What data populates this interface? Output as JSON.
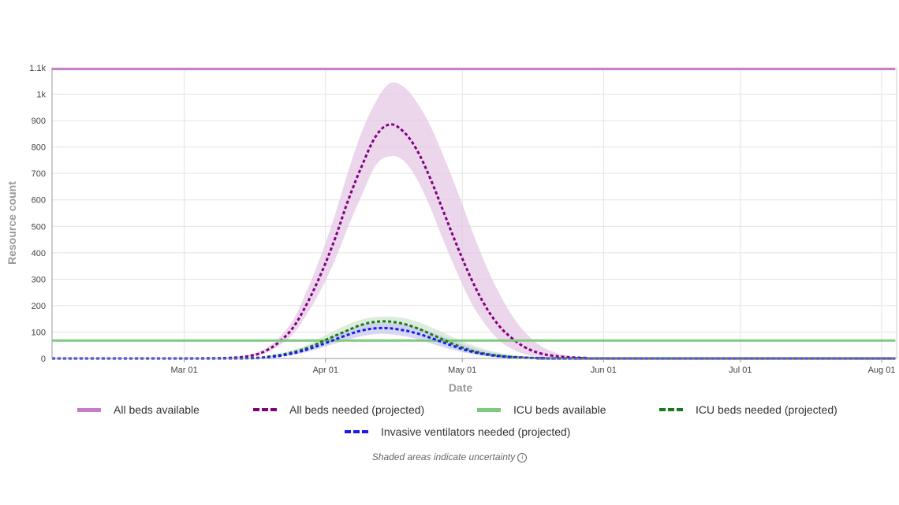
{
  "chart_data": {
    "type": "line",
    "xlabel": "Date",
    "ylabel": "Resource count",
    "ylim": [
      0,
      1100
    ],
    "y_ticks": [
      0,
      100,
      200,
      300,
      400,
      500,
      600,
      700,
      800,
      900,
      1000,
      1100
    ],
    "y_tick_labels": [
      "0",
      "100",
      "200",
      "300",
      "400",
      "500",
      "600",
      "700",
      "800",
      "900",
      "1k",
      "1.1k"
    ],
    "x_range": [
      "2020-02-01",
      "2020-08-01"
    ],
    "x_ticks": [
      "2020-03-01",
      "2020-04-01",
      "2020-05-01",
      "2020-06-01",
      "2020-07-01",
      "2020-08-01"
    ],
    "x_tick_labels": [
      "Mar 01",
      "Apr 01",
      "May 01",
      "Jun 01",
      "Jul 01",
      "Aug 01"
    ],
    "grid": true,
    "legend_position": "bottom",
    "series": [
      {
        "name": "All beds available",
        "style": "solid",
        "color": "#c77dc7",
        "x": [
          "2020-02-01",
          "2020-08-04"
        ],
        "y": [
          1095,
          1095
        ]
      },
      {
        "name": "All beds needed (projected)",
        "style": "dashed",
        "color": "#800080",
        "band_color": "#e2c4e2",
        "x": [
          "2020-02-01",
          "2020-03-01",
          "2020-03-11",
          "2020-03-16",
          "2020-03-19",
          "2020-03-22",
          "2020-03-25",
          "2020-03-28",
          "2020-03-31",
          "2020-04-03",
          "2020-04-06",
          "2020-04-09",
          "2020-04-12",
          "2020-04-15",
          "2020-04-18",
          "2020-04-21",
          "2020-04-24",
          "2020-04-27",
          "2020-04-30",
          "2020-05-03",
          "2020-05-06",
          "2020-05-09",
          "2020-05-12",
          "2020-05-15",
          "2020-05-18",
          "2020-05-21",
          "2020-05-24",
          "2020-05-28",
          "2020-06-01",
          "2020-08-04"
        ],
        "y": [
          0,
          0,
          2,
          12,
          30,
          65,
          120,
          210,
          320,
          450,
          600,
          730,
          840,
          885,
          860,
          790,
          680,
          550,
          420,
          300,
          200,
          125,
          75,
          40,
          20,
          10,
          5,
          2,
          0,
          0
        ],
        "lower": [
          0,
          0,
          1,
          8,
          22,
          50,
          95,
          170,
          260,
          370,
          500,
          620,
          730,
          765,
          750,
          680,
          570,
          440,
          320,
          210,
          130,
          70,
          35,
          15,
          6,
          2,
          1,
          0,
          0,
          0
        ],
        "upper": [
          0,
          0,
          4,
          18,
          40,
          82,
          150,
          260,
          390,
          540,
          710,
          860,
          970,
          1040,
          1030,
          970,
          880,
          760,
          630,
          490,
          360,
          250,
          160,
          95,
          50,
          25,
          10,
          3,
          0,
          0
        ]
      },
      {
        "name": "ICU beds available",
        "style": "solid",
        "color": "#80c880",
        "x": [
          "2020-02-01",
          "2020-08-04"
        ],
        "y": [
          68,
          68
        ]
      },
      {
        "name": "ICU beds needed (projected)",
        "style": "dashed",
        "color": "#1a7a1a",
        "band_color": "#cde6cd",
        "x": [
          "2020-02-01",
          "2020-03-01",
          "2020-03-16",
          "2020-03-20",
          "2020-03-24",
          "2020-03-28",
          "2020-04-01",
          "2020-04-05",
          "2020-04-09",
          "2020-04-13",
          "2020-04-17",
          "2020-04-21",
          "2020-04-25",
          "2020-04-29",
          "2020-05-03",
          "2020-05-07",
          "2020-05-11",
          "2020-05-15",
          "2020-05-19",
          "2020-05-25",
          "2020-08-04"
        ],
        "y": [
          0,
          0,
          2,
          8,
          20,
          40,
          70,
          100,
          128,
          140,
          135,
          115,
          85,
          55,
          30,
          15,
          7,
          3,
          1,
          0,
          0
        ],
        "lower": [
          0,
          0,
          1,
          5,
          14,
          30,
          55,
          80,
          100,
          112,
          108,
          90,
          62,
          38,
          20,
          9,
          4,
          1,
          0,
          0,
          0
        ],
        "upper": [
          0,
          0,
          3,
          12,
          28,
          52,
          88,
          122,
          148,
          158,
          156,
          140,
          112,
          80,
          52,
          30,
          16,
          8,
          3,
          0,
          0
        ]
      },
      {
        "name": "Invasive ventilators needed (projected)",
        "style": "dashed",
        "color": "#1a1aee",
        "band_color": "#c8c8f0",
        "x": [
          "2020-02-01",
          "2020-03-01",
          "2020-03-16",
          "2020-03-20",
          "2020-03-24",
          "2020-03-28",
          "2020-04-01",
          "2020-04-05",
          "2020-04-09",
          "2020-04-13",
          "2020-04-17",
          "2020-04-21",
          "2020-04-25",
          "2020-04-29",
          "2020-05-03",
          "2020-05-07",
          "2020-05-11",
          "2020-05-15",
          "2020-05-19",
          "2020-05-25",
          "2020-08-04"
        ],
        "y": [
          0,
          0,
          1,
          6,
          16,
          34,
          58,
          84,
          106,
          115,
          110,
          95,
          72,
          47,
          26,
          13,
          6,
          2,
          1,
          0,
          0
        ],
        "lower": [
          0,
          0,
          0,
          4,
          11,
          25,
          45,
          66,
          84,
          93,
          88,
          74,
          52,
          32,
          17,
          7,
          3,
          1,
          0,
          0,
          0
        ],
        "upper": [
          0,
          0,
          2,
          9,
          22,
          44,
          72,
          102,
          126,
          135,
          132,
          118,
          95,
          68,
          42,
          24,
          12,
          5,
          2,
          0,
          0
        ]
      }
    ]
  },
  "legend": {
    "items": [
      {
        "label": "All beds available",
        "color": "#c77dc7",
        "style": "solid"
      },
      {
        "label": "All beds needed (projected)",
        "color": "#800080",
        "style": "dashed"
      },
      {
        "label": "ICU beds available",
        "color": "#80c880",
        "style": "solid"
      },
      {
        "label": "ICU beds needed (projected)",
        "color": "#1a7a1a",
        "style": "dashed"
      },
      {
        "label": "Invasive ventilators needed (projected)",
        "color": "#1a1aee",
        "style": "dashed"
      }
    ]
  },
  "note": {
    "text": "Shaded areas indicate uncertainty",
    "icon": "info-icon"
  }
}
